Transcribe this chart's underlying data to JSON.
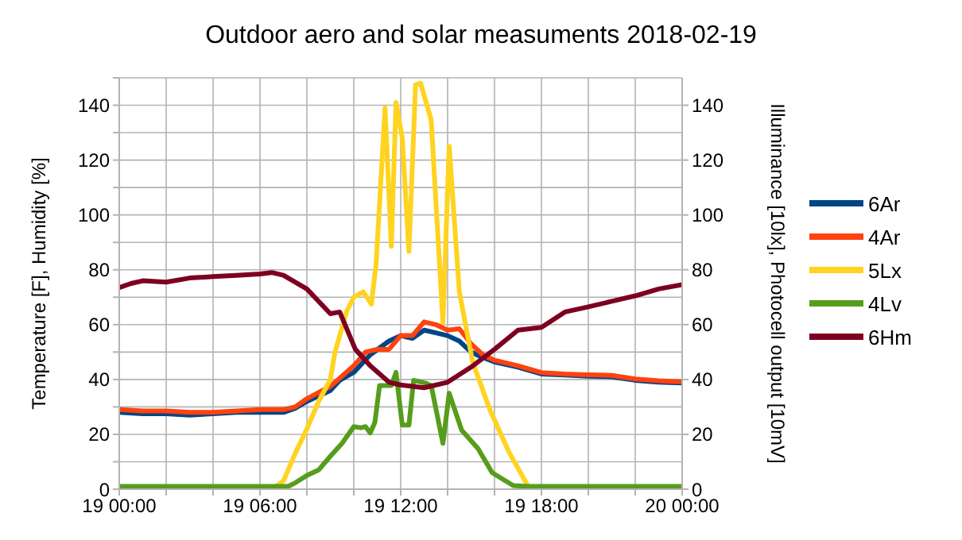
{
  "chart_data": {
    "type": "line",
    "title": "Outdoor aero and solar measuments 2018-02-19",
    "ylabel": "Temperature [F], Humidity [%]",
    "y2label": "Illuminance [10lx], Photocell output [10mV]",
    "xlim": [
      "2018-02-19T00:00",
      "2018-02-20T00:00"
    ],
    "xticks": [
      {
        "value": "2018-02-19T00:00",
        "label": "19 00:00"
      },
      {
        "value": "2018-02-19T02:00",
        "label": null
      },
      {
        "value": "2018-02-19T04:00",
        "label": null
      },
      {
        "value": "2018-02-19T06:00",
        "label": "19 06:00"
      },
      {
        "value": "2018-02-19T08:00",
        "label": null
      },
      {
        "value": "2018-02-19T10:00",
        "label": null
      },
      {
        "value": "2018-02-19T12:00",
        "label": "19 12:00"
      },
      {
        "value": "2018-02-19T14:00",
        "label": null
      },
      {
        "value": "2018-02-19T16:00",
        "label": null
      },
      {
        "value": "2018-02-19T18:00",
        "label": "19 18:00"
      },
      {
        "value": "2018-02-19T20:00",
        "label": null
      },
      {
        "value": "2018-02-19T22:00",
        "label": null
      },
      {
        "value": "2018-02-20T00:00",
        "label": "20 00:00"
      }
    ],
    "ylim": [
      0,
      150
    ],
    "yticks": [
      0,
      {
        "value": 10,
        "label": null
      },
      20,
      {
        "value": 30,
        "label": null
      },
      40,
      {
        "value": 50,
        "label": null
      },
      60,
      {
        "value": 70,
        "label": null
      },
      80,
      {
        "value": 90,
        "label": null
      },
      100,
      {
        "value": 110,
        "label": null
      },
      120,
      {
        "value": 130,
        "label": null
      },
      140,
      {
        "value": 150,
        "label": null
      }
    ],
    "y2lim": [
      0,
      150
    ],
    "y2ticks": [
      0,
      20,
      40,
      60,
      80,
      100,
      120,
      140
    ],
    "grid": true,
    "legend": "right",
    "marker": "none",
    "line_style": "solid",
    "series": [
      {
        "name": "6Ar",
        "color": "#004586",
        "x": [
          "2018-02-19T00:00",
          "2018-02-19T01:00",
          "2018-02-19T02:00",
          "2018-02-19T03:00",
          "2018-02-19T04:00",
          "2018-02-19T05:00",
          "2018-02-19T06:00",
          "2018-02-19T07:00",
          "2018-02-19T07:30",
          "2018-02-19T08:00",
          "2018-02-19T09:00",
          "2018-02-19T09:24",
          "2018-02-19T10:00",
          "2018-02-19T10:42",
          "2018-02-19T11:30",
          "2018-02-19T12:00",
          "2018-02-19T12:30",
          "2018-02-19T13:00",
          "2018-02-19T13:30",
          "2018-02-19T14:00",
          "2018-02-19T14:30",
          "2018-02-19T15:00",
          "2018-02-19T15:30",
          "2018-02-19T16:00",
          "2018-02-19T17:00",
          "2018-02-19T18:00",
          "2018-02-19T19:00",
          "2018-02-19T20:00",
          "2018-02-19T21:00",
          "2018-02-19T22:00",
          "2018-02-19T23:00",
          "2018-02-20T00:00"
        ],
        "values": [
          28,
          27.5,
          27.5,
          27,
          27.5,
          28,
          28,
          28,
          29.5,
          32,
          36,
          39.7,
          42.6,
          49,
          54,
          56,
          55,
          58,
          57,
          56,
          54,
          50,
          48,
          46.4,
          44.5,
          42,
          41.6,
          41.2,
          41,
          39.7,
          39,
          38.7
        ]
      },
      {
        "name": "4Ar",
        "color": "#ff420e",
        "x": [
          "2018-02-19T00:00",
          "2018-02-19T01:00",
          "2018-02-19T02:00",
          "2018-02-19T03:00",
          "2018-02-19T04:00",
          "2018-02-19T05:00",
          "2018-02-19T06:00",
          "2018-02-19T07:00",
          "2018-02-19T07:30",
          "2018-02-19T08:00",
          "2018-02-19T09:00",
          "2018-02-19T09:24",
          "2018-02-19T10:00",
          "2018-02-19T10:30",
          "2018-02-19T11:00",
          "2018-02-19T11:30",
          "2018-02-19T12:00",
          "2018-02-19T12:30",
          "2018-02-19T13:00",
          "2018-02-19T13:30",
          "2018-02-19T14:00",
          "2018-02-19T14:30",
          "2018-02-19T15:00",
          "2018-02-19T15:30",
          "2018-02-19T16:00",
          "2018-02-19T17:00",
          "2018-02-19T18:00",
          "2018-02-19T19:00",
          "2018-02-19T20:00",
          "2018-02-19T21:00",
          "2018-02-19T22:00",
          "2018-02-19T23:00",
          "2018-02-20T00:00"
        ],
        "values": [
          29,
          28.5,
          28.5,
          28,
          28,
          28.5,
          29,
          29,
          30,
          33,
          37.5,
          40.5,
          45,
          50,
          51,
          51,
          56,
          56,
          61,
          60,
          58,
          58.5,
          53,
          49,
          47,
          45,
          42.5,
          42,
          41.7,
          41.5,
          40.2,
          39.5,
          39.2
        ]
      },
      {
        "name": "5Lx",
        "color": "#ffd320",
        "axis": "y2",
        "x": [
          "2018-02-19T00:00",
          "2018-02-19T06:30",
          "2018-02-19T07:00",
          "2018-02-19T07:30",
          "2018-02-19T08:00",
          "2018-02-19T08:30",
          "2018-02-19T09:00",
          "2018-02-19T09:12",
          "2018-02-19T09:42",
          "2018-02-19T10:00",
          "2018-02-19T10:24",
          "2018-02-19T10:45",
          "2018-02-19T10:57",
          "2018-02-19T11:20",
          "2018-02-19T11:36",
          "2018-02-19T11:48",
          "2018-02-19T12:04",
          "2018-02-19T12:21",
          "2018-02-19T12:38",
          "2018-02-19T12:51",
          "2018-02-19T13:18",
          "2018-02-19T13:48",
          "2018-02-19T14:04",
          "2018-02-19T14:30",
          "2018-02-19T15:04",
          "2018-02-19T15:48",
          "2018-02-19T16:36",
          "2018-02-19T17:30",
          "2018-02-20T00:00"
        ],
        "values": [
          0,
          0,
          3,
          13,
          22,
          32,
          40,
          50,
          65,
          70,
          72,
          67.5,
          82,
          139,
          88.6,
          141,
          128,
          86.7,
          147.5,
          148,
          134.6,
          60.8,
          125,
          72,
          46.4,
          29,
          13.8,
          0,
          0
        ]
      },
      {
        "name": "4Lv",
        "color": "#579d1c",
        "axis": "y2",
        "x": [
          "2018-02-19T00:00",
          "2018-02-19T07:12",
          "2018-02-19T07:30",
          "2018-02-19T08:00",
          "2018-02-19T08:30",
          "2018-02-19T09:00",
          "2018-02-19T09:30",
          "2018-02-19T10:00",
          "2018-02-19T10:18",
          "2018-02-19T10:30",
          "2018-02-19T10:42",
          "2018-02-19T10:54",
          "2018-02-19T11:06",
          "2018-02-19T11:36",
          "2018-02-19T11:48",
          "2018-02-19T12:04",
          "2018-02-19T12:21",
          "2018-02-19T12:33",
          "2018-02-19T13:03",
          "2018-02-19T13:18",
          "2018-02-19T13:48",
          "2018-02-19T14:04",
          "2018-02-19T14:36",
          "2018-02-19T15:18",
          "2018-02-19T15:54",
          "2018-02-19T16:48",
          "2018-02-19T17:24",
          "2018-02-20T00:00"
        ],
        "values": [
          1,
          1,
          2.3,
          5,
          7,
          12,
          16.7,
          22.8,
          22.4,
          22.8,
          20.5,
          24.4,
          37.8,
          37.8,
          42.6,
          23.4,
          23.4,
          39.7,
          38.7,
          37.8,
          16.7,
          35,
          21.5,
          14.8,
          6,
          1.3,
          1,
          1
        ]
      },
      {
        "name": "6Hm",
        "color": "#7e0021",
        "x": [
          "2018-02-19T00:00",
          "2018-02-19T00:30",
          "2018-02-19T01:00",
          "2018-02-19T02:00",
          "2018-02-19T03:00",
          "2018-02-19T04:00",
          "2018-02-19T05:00",
          "2018-02-19T06:00",
          "2018-02-19T06:30",
          "2018-02-19T07:00",
          "2018-02-19T08:00",
          "2018-02-19T09:00",
          "2018-02-19T09:24",
          "2018-02-19T10:04",
          "2018-02-19T10:42",
          "2018-02-19T11:30",
          "2018-02-19T12:00",
          "2018-02-19T13:00",
          "2018-02-19T14:00",
          "2018-02-19T15:00",
          "2018-02-19T16:00",
          "2018-02-19T17:00",
          "2018-02-19T18:00",
          "2018-02-19T19:00",
          "2018-02-19T20:00",
          "2018-02-19T21:00",
          "2018-02-19T22:00",
          "2018-02-19T23:00",
          "2018-02-20T00:00"
        ],
        "values": [
          73.5,
          75,
          76,
          75.5,
          77,
          77.5,
          78,
          78.5,
          79,
          78,
          73,
          64,
          64.6,
          51,
          45,
          39,
          38,
          37,
          39,
          44.5,
          51,
          58,
          59,
          64.6,
          66.5,
          68.5,
          70.5,
          73,
          74.6
        ]
      }
    ]
  }
}
